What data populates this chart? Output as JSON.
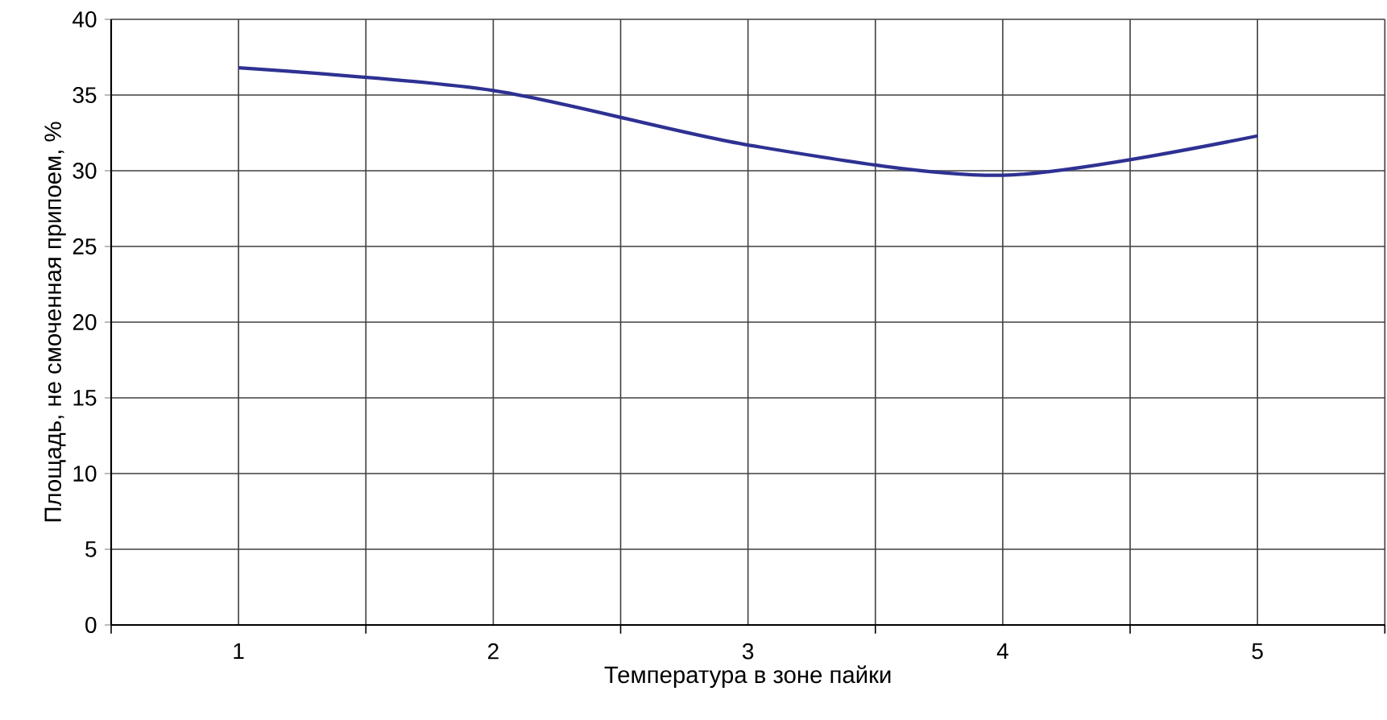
{
  "chart_data": {
    "type": "line",
    "xlabel": "Температура в зоне пайки",
    "ylabel": "Площадь, не смоченная припоем, %",
    "categories": [
      "1",
      "2",
      "3",
      "4",
      "5"
    ],
    "series": [
      {
        "color": "#2e3192",
        "values": [
          36.8,
          35.3,
          31.7,
          29.7,
          32.3
        ]
      }
    ],
    "ylim": [
      0,
      40
    ],
    "yticks": [
      0,
      5,
      10,
      15,
      20,
      25,
      30,
      35,
      40
    ],
    "grid": true
  }
}
